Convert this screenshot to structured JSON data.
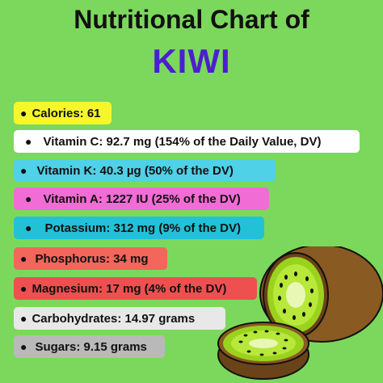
{
  "title": {
    "line1": "Nutritional Chart of",
    "line2": "KIWI"
  },
  "items": [
    {
      "label": "Calories: 61",
      "color": "#f6f72b"
    },
    {
      "label": "Vitamin C: 92.7 mg (154% of the Daily Value, DV)",
      "color": "#ffffff"
    },
    {
      "label": "Vitamin K: 40.3 µg (50% of the DV)",
      "color": "#4fd1e8"
    },
    {
      "label": "Vitamin A: 1227 IU (25% of the DV)",
      "color": "#f26cd6"
    },
    {
      "label": "Potassium: 312 mg (9% of the DV)",
      "color": "#22c1d6"
    },
    {
      "label": "Phosphorus: 34 mg",
      "color": "#f2665c"
    },
    {
      "label": "Magnesium: 17 mg (4% of the DV)",
      "color": "#ee5050"
    },
    {
      "label": "Carbohydrates: 14.97 grams",
      "color": "#e8e8e8"
    },
    {
      "label": "Sugars: 9.15 grams",
      "color": "#b9b9b9"
    }
  ],
  "illustration": "kiwi-fruit-illustration",
  "colors": {
    "background": "#7cd85c",
    "title_accent": "#4b1fd1"
  }
}
